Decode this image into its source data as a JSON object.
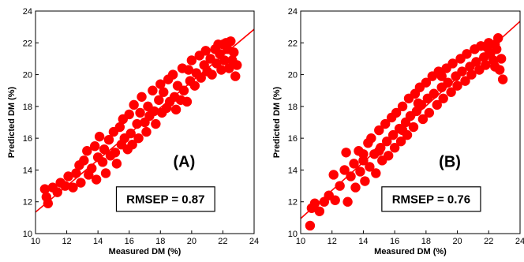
{
  "colors": {
    "points": "#ff0000",
    "line": "#ff0000",
    "axes": "#000000",
    "background": "#ffffff"
  },
  "chart_data": [
    {
      "type": "scatter",
      "panel_label": "(A)",
      "annotation": "RMSEP = 0.87",
      "xlabel": "Measured DM (%)",
      "ylabel": "Predicted DM (%)",
      "xlim": [
        10,
        24
      ],
      "ylim": [
        10,
        24
      ],
      "xticks": [
        "10",
        "12",
        "14",
        "16",
        "18",
        "20",
        "22",
        "24"
      ],
      "yticks": [
        "10",
        "12",
        "14",
        "16",
        "18",
        "20",
        "22",
        "24"
      ],
      "fit_line": {
        "x": [
          10,
          24
        ],
        "y": [
          11.35,
          22.85
        ]
      },
      "grid": false,
      "points": [
        [
          10.6,
          12.8
        ],
        [
          10.7,
          12.3
        ],
        [
          10.8,
          11.9
        ],
        [
          11.1,
          12.9
        ],
        [
          11.4,
          12.6
        ],
        [
          11.6,
          13.2
        ],
        [
          11.9,
          13.0
        ],
        [
          12.1,
          13.6
        ],
        [
          12.4,
          12.9
        ],
        [
          12.6,
          13.8
        ],
        [
          12.8,
          14.3
        ],
        [
          12.9,
          13.2
        ],
        [
          13.1,
          14.6
        ],
        [
          13.3,
          15.2
        ],
        [
          13.4,
          13.7
        ],
        [
          13.6,
          14.1
        ],
        [
          13.8,
          15.5
        ],
        [
          13.9,
          13.4
        ],
        [
          14.0,
          14.8
        ],
        [
          14.1,
          16.1
        ],
        [
          14.3,
          14.5
        ],
        [
          14.4,
          15.3
        ],
        [
          14.5,
          13.8
        ],
        [
          14.7,
          15.9
        ],
        [
          14.8,
          14.9
        ],
        [
          15.0,
          16.4
        ],
        [
          15.1,
          15.1
        ],
        [
          15.2,
          14.4
        ],
        [
          15.4,
          16.7
        ],
        [
          15.5,
          15.6
        ],
        [
          15.6,
          17.2
        ],
        [
          15.7,
          16.0
        ],
        [
          15.9,
          15.3
        ],
        [
          16.0,
          17.5
        ],
        [
          16.1,
          16.3
        ],
        [
          16.2,
          15.6
        ],
        [
          16.3,
          18.1
        ],
        [
          16.5,
          16.9
        ],
        [
          16.6,
          16.0
        ],
        [
          16.7,
          17.6
        ],
        [
          16.8,
          18.6
        ],
        [
          17.0,
          17.0
        ],
        [
          17.1,
          16.4
        ],
        [
          17.2,
          18.0
        ],
        [
          17.3,
          17.4
        ],
        [
          17.5,
          19.0
        ],
        [
          17.6,
          17.7
        ],
        [
          17.7,
          16.9
        ],
        [
          17.9,
          18.4
        ],
        [
          18.0,
          19.4
        ],
        [
          18.1,
          17.6
        ],
        [
          18.2,
          18.9
        ],
        [
          18.4,
          17.9
        ],
        [
          18.5,
          19.7
        ],
        [
          18.6,
          18.3
        ],
        [
          18.8,
          20.0
        ],
        [
          18.9,
          18.6
        ],
        [
          19.0,
          17.8
        ],
        [
          19.1,
          19.3
        ],
        [
          19.3,
          18.4
        ],
        [
          19.4,
          20.4
        ],
        [
          19.5,
          19.0
        ],
        [
          19.7,
          18.3
        ],
        [
          19.8,
          20.3
        ],
        [
          19.9,
          19.6
        ],
        [
          20.0,
          20.9
        ],
        [
          20.2,
          19.3
        ],
        [
          20.3,
          20.1
        ],
        [
          20.5,
          21.2
        ],
        [
          20.6,
          19.8
        ],
        [
          20.8,
          20.6
        ],
        [
          20.9,
          21.5
        ],
        [
          21.0,
          20.2
        ],
        [
          21.2,
          21.0
        ],
        [
          21.3,
          20.0
        ],
        [
          21.5,
          21.6
        ],
        [
          21.6,
          20.7
        ],
        [
          21.8,
          21.3
        ],
        [
          21.9,
          20.3
        ],
        [
          22.0,
          21.9
        ],
        [
          22.1,
          20.9
        ],
        [
          22.3,
          21.6
        ],
        [
          22.4,
          20.4
        ],
        [
          22.5,
          22.1
        ],
        [
          22.6,
          20.9
        ],
        [
          22.7,
          21.4
        ],
        [
          22.8,
          19.9
        ],
        [
          22.9,
          20.6
        ],
        [
          21.7,
          21.9
        ],
        [
          22.2,
          22.0
        ]
      ]
    },
    {
      "type": "scatter",
      "panel_label": "(B)",
      "annotation": "RMSEP = 0.76",
      "xlabel": "Measured DM (%)",
      "ylabel": "Predicted DM (%)",
      "xlim": [
        10,
        24
      ],
      "ylim": [
        10,
        24
      ],
      "xticks": [
        "10",
        "12",
        "14",
        "16",
        "18",
        "20",
        "22",
        "24"
      ],
      "yticks": [
        "10",
        "12",
        "14",
        "16",
        "18",
        "20",
        "22",
        "24"
      ],
      "fit_line": {
        "x": [
          10,
          24
        ],
        "y": [
          10.95,
          23.35
        ]
      },
      "grid": false,
      "points": [
        [
          10.6,
          10.5
        ],
        [
          10.7,
          11.6
        ],
        [
          10.9,
          11.9
        ],
        [
          11.2,
          11.4
        ],
        [
          11.5,
          12.0
        ],
        [
          11.8,
          12.4
        ],
        [
          12.1,
          13.7
        ],
        [
          12.2,
          12.1
        ],
        [
          12.5,
          13.0
        ],
        [
          12.8,
          14.0
        ],
        [
          12.9,
          15.1
        ],
        [
          13.0,
          12.0
        ],
        [
          13.2,
          13.6
        ],
        [
          13.4,
          14.4
        ],
        [
          13.5,
          12.9
        ],
        [
          13.7,
          15.2
        ],
        [
          13.8,
          13.9
        ],
        [
          14.0,
          14.6
        ],
        [
          14.1,
          13.3
        ],
        [
          14.3,
          15.7
        ],
        [
          14.4,
          14.2
        ],
        [
          14.5,
          16.0
        ],
        [
          14.7,
          15.0
        ],
        [
          14.8,
          13.8
        ],
        [
          15.0,
          16.5
        ],
        [
          15.1,
          15.4
        ],
        [
          15.2,
          14.6
        ],
        [
          15.4,
          16.9
        ],
        [
          15.5,
          15.8
        ],
        [
          15.6,
          14.9
        ],
        [
          15.8,
          17.3
        ],
        [
          15.9,
          16.2
        ],
        [
          16.0,
          15.4
        ],
        [
          16.1,
          17.6
        ],
        [
          16.3,
          16.6
        ],
        [
          16.4,
          15.8
        ],
        [
          16.5,
          18.0
        ],
        [
          16.7,
          17.0
        ],
        [
          16.8,
          16.2
        ],
        [
          16.9,
          18.5
        ],
        [
          17.0,
          17.4
        ],
        [
          17.2,
          16.7
        ],
        [
          17.3,
          18.8
        ],
        [
          17.4,
          17.7
        ],
        [
          17.6,
          19.2
        ],
        [
          17.7,
          18.1
        ],
        [
          17.8,
          17.2
        ],
        [
          18.0,
          19.5
        ],
        [
          18.1,
          18.5
        ],
        [
          18.2,
          17.6
        ],
        [
          18.4,
          19.9
        ],
        [
          18.5,
          18.8
        ],
        [
          18.7,
          18.1
        ],
        [
          18.8,
          20.2
        ],
        [
          19.0,
          19.2
        ],
        [
          19.1,
          18.5
        ],
        [
          19.3,
          20.4
        ],
        [
          19.4,
          19.5
        ],
        [
          19.6,
          18.9
        ],
        [
          19.7,
          20.7
        ],
        [
          19.9,
          19.9
        ],
        [
          20.0,
          19.3
        ],
        [
          20.2,
          21.0
        ],
        [
          20.3,
          20.2
        ],
        [
          20.5,
          19.6
        ],
        [
          20.6,
          21.3
        ],
        [
          20.8,
          20.5
        ],
        [
          20.9,
          20.0
        ],
        [
          21.1,
          21.6
        ],
        [
          21.2,
          20.8
        ],
        [
          21.4,
          20.3
        ],
        [
          21.5,
          21.8
        ],
        [
          21.7,
          21.1
        ],
        [
          21.8,
          20.6
        ],
        [
          22.0,
          22.0
        ],
        [
          22.1,
          21.3
        ],
        [
          22.3,
          20.9
        ],
        [
          22.4,
          21.9
        ],
        [
          22.5,
          21.6
        ],
        [
          22.6,
          22.3
        ],
        [
          22.7,
          20.3
        ],
        [
          22.8,
          21.0
        ],
        [
          22.9,
          19.7
        ],
        [
          22.4,
          20.5
        ],
        [
          21.9,
          21.7
        ],
        [
          16.5,
          16.5
        ],
        [
          15.0,
          15.2
        ],
        [
          19.0,
          19.9
        ],
        [
          17.5,
          18.2
        ],
        [
          14.0,
          15.0
        ]
      ]
    }
  ]
}
